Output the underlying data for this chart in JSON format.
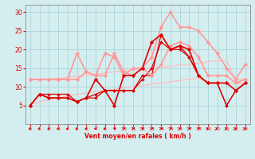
{
  "x": [
    0,
    1,
    2,
    3,
    4,
    5,
    6,
    7,
    8,
    9,
    10,
    11,
    12,
    13,
    14,
    15,
    16,
    17,
    18,
    19,
    20,
    21,
    22,
    23
  ],
  "lines": [
    {
      "y": [
        5,
        8,
        8,
        8,
        8,
        6,
        7,
        7,
        9,
        9,
        9,
        9,
        13,
        13,
        24,
        20,
        20,
        18,
        13,
        11,
        11,
        5,
        9,
        11
      ],
      "color": "#dd0000",
      "lw": 0.9,
      "marker": "D",
      "ms": 2.0,
      "zorder": 3
    },
    {
      "y": [
        5,
        8,
        7,
        7,
        7,
        6,
        7,
        12,
        9,
        5,
        13,
        13,
        15,
        22,
        24,
        20,
        21,
        20,
        13,
        11,
        11,
        11,
        9,
        11
      ],
      "color": "#dd0000",
      "lw": 1.2,
      "marker": "D",
      "ms": 2.5,
      "zorder": 4
    },
    {
      "y": [
        5,
        8,
        7,
        7,
        7,
        6,
        7,
        8,
        9,
        9,
        9,
        9,
        12,
        15,
        22,
        20,
        21,
        18,
        13,
        11,
        11,
        5,
        9,
        11
      ],
      "color": "#dd0000",
      "lw": 0.9,
      "marker": "D",
      "ms": 2.0,
      "zorder": 3
    },
    {
      "y": [
        12,
        12,
        12,
        12,
        12,
        12,
        14,
        13,
        19,
        18,
        13,
        15,
        15,
        18,
        26,
        30,
        26,
        26,
        25,
        22,
        19,
        15,
        12,
        16
      ],
      "color": "#ff9999",
      "lw": 1.2,
      "marker": "D",
      "ms": 2.5,
      "zorder": 3
    },
    {
      "y": [
        12,
        12,
        12,
        12,
        12,
        19,
        14,
        13,
        13,
        19,
        14,
        13,
        15,
        13,
        16,
        21,
        22,
        21,
        18,
        13,
        13,
        13,
        11,
        12
      ],
      "color": "#ff9999",
      "lw": 1.2,
      "marker": "D",
      "ms": 2.5,
      "zorder": 3
    },
    {
      "y": [
        5,
        6,
        6.5,
        7,
        7.5,
        8,
        8.3,
        8.7,
        9,
        9.3,
        9.7,
        10,
        10.3,
        10.7,
        11,
        11.3,
        11.7,
        12,
        12.3,
        11,
        11,
        11,
        11,
        11
      ],
      "color": "#ffbbbb",
      "lw": 0.9,
      "marker": null,
      "ms": 0,
      "zorder": 2
    },
    {
      "y": [
        12,
        12,
        12,
        12.2,
        12.5,
        12.8,
        13,
        13.3,
        13.7,
        14,
        14.2,
        14.5,
        14.8,
        15,
        15.2,
        15.5,
        15.8,
        16,
        16.3,
        16.7,
        17,
        17,
        12,
        12
      ],
      "color": "#ffbbbb",
      "lw": 0.9,
      "marker": null,
      "ms": 0,
      "zorder": 2
    }
  ],
  "arrows_x": [
    0,
    1,
    2,
    3,
    4,
    5,
    6,
    7,
    8,
    9,
    10,
    11,
    12,
    13,
    14,
    15,
    16,
    17,
    18,
    19,
    20,
    21,
    22,
    23
  ],
  "arrows_dirs": [
    225,
    225,
    225,
    225,
    225,
    225,
    225,
    225,
    225,
    45,
    45,
    45,
    45,
    45,
    45,
    45,
    45,
    45,
    45,
    225,
    225,
    225,
    225,
    225
  ],
  "xlabel": "Vent moyen/en rafales ( km/h )",
  "ylim": [
    0,
    32
  ],
  "xlim": [
    -0.5,
    23.5
  ],
  "yticks": [
    5,
    10,
    15,
    20,
    25,
    30
  ],
  "xticks": [
    0,
    1,
    2,
    3,
    4,
    5,
    6,
    7,
    8,
    9,
    10,
    11,
    12,
    13,
    14,
    15,
    16,
    17,
    18,
    19,
    20,
    21,
    22,
    23
  ],
  "bg_color": "#d4eef0",
  "grid_color": "#aad4d8",
  "arrow_color": "#dd0000",
  "xlabel_color": "#dd0000",
  "tick_color": "#dd0000"
}
